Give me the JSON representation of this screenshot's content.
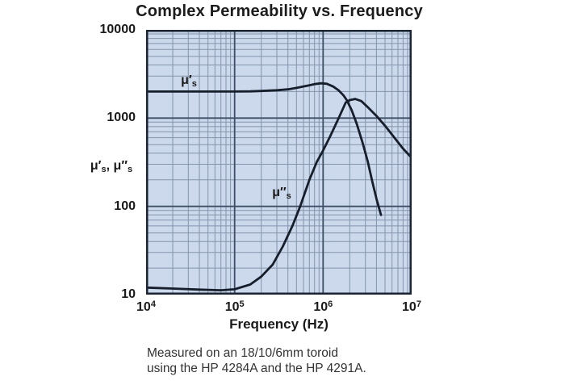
{
  "title": "Complex Permeability vs. Frequency",
  "axes": {
    "x_title": "Frequency (Hz)",
    "x_ticks": [
      {
        "base": "10",
        "exp": "4"
      },
      {
        "base": "10",
        "exp": "5"
      },
      {
        "base": "10",
        "exp": "6"
      },
      {
        "base": "10",
        "exp": "7"
      }
    ],
    "y_ticks": [
      "10000",
      "1000",
      "100",
      "10"
    ],
    "y_title_separator": ", "
  },
  "labels": {
    "mu_prime": {
      "base": "μ′",
      "sub": "s"
    },
    "mu_dprime": {
      "base": "μ″",
      "sub": "s"
    }
  },
  "caption": {
    "line1": "Measured on an 18/10/6mm toroid",
    "line2": "using the HP 4284A and the HP 4291A."
  },
  "colors": {
    "plot_bg": "#ccd9ec",
    "grid_minor": "#8494ac",
    "grid_major": "#3e4e66",
    "frame": "#1b2433",
    "curve": "#161e2c",
    "text": "#1a1a1a",
    "caption_text": "#333333"
  },
  "chart_data": {
    "type": "line",
    "title": "Complex Permeability vs. Frequency",
    "xlabel": "Frequency (Hz)",
    "ylabel": "μ′s, μ″s",
    "x_scale": "log",
    "y_scale": "log",
    "xlim": [
      10000,
      10000000
    ],
    "ylim": [
      10,
      10000
    ],
    "grid": true,
    "legend_position": "inline-curve-labels",
    "series": [
      {
        "name": "μ′s",
        "points": [
          [
            10000,
            2000
          ],
          [
            20000,
            2000
          ],
          [
            40000,
            2000
          ],
          [
            70000,
            2000
          ],
          [
            100000,
            2000
          ],
          [
            150000,
            2010
          ],
          [
            200000,
            2030
          ],
          [
            300000,
            2070
          ],
          [
            400000,
            2120
          ],
          [
            500000,
            2200
          ],
          [
            650000,
            2320
          ],
          [
            800000,
            2430
          ],
          [
            950000,
            2480
          ],
          [
            1100000,
            2450
          ],
          [
            1300000,
            2280
          ],
          [
            1500000,
            2060
          ],
          [
            1700000,
            1810
          ],
          [
            1850000,
            1600
          ],
          [
            2100000,
            1230
          ],
          [
            2400000,
            860
          ],
          [
            2800000,
            520
          ],
          [
            3200000,
            320
          ],
          [
            3600000,
            190
          ],
          [
            4000000,
            122
          ],
          [
            4500000,
            80
          ]
        ]
      },
      {
        "name": "μ″s",
        "points": [
          [
            10000,
            12
          ],
          [
            20000,
            11.7
          ],
          [
            40000,
            11.4
          ],
          [
            70000,
            11.2
          ],
          [
            100000,
            11.5
          ],
          [
            150000,
            13
          ],
          [
            200000,
            16
          ],
          [
            270000,
            22
          ],
          [
            350000,
            35
          ],
          [
            450000,
            60
          ],
          [
            550000,
            100
          ],
          [
            700000,
            200
          ],
          [
            850000,
            320
          ],
          [
            1000000,
            430
          ],
          [
            1200000,
            620
          ],
          [
            1500000,
            1000
          ],
          [
            1800000,
            1500
          ],
          [
            2000000,
            1600
          ],
          [
            2300000,
            1650
          ],
          [
            2700000,
            1560
          ],
          [
            3200000,
            1330
          ],
          [
            4000000,
            1060
          ],
          [
            5000000,
            820
          ],
          [
            6300000,
            610
          ],
          [
            8000000,
            450
          ],
          [
            10000000,
            355
          ]
        ]
      }
    ]
  }
}
